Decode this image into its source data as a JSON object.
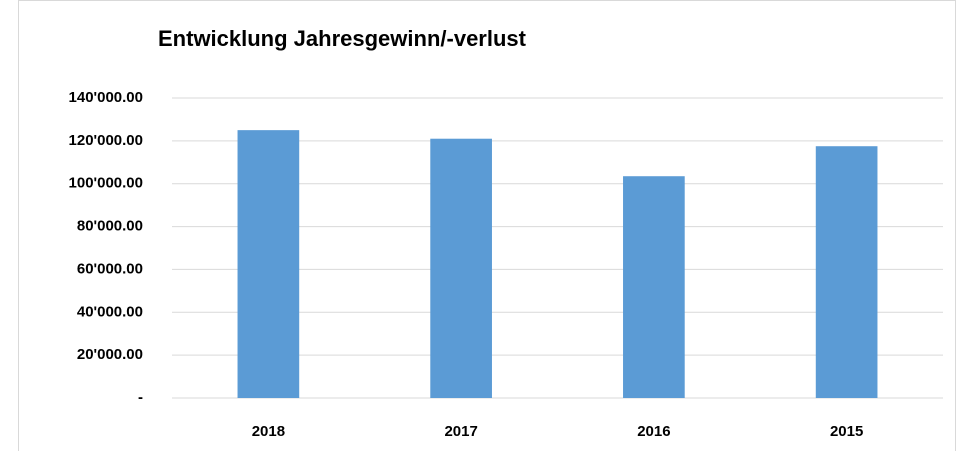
{
  "chart_data": {
    "type": "bar",
    "title": "Entwicklung Jahresgewinn/-verlust",
    "categories": [
      "2018",
      "2017",
      "2016",
      "2015"
    ],
    "values": [
      125000,
      121000,
      103500,
      117500
    ],
    "color": "#5b9bd5",
    "ylim": [
      0,
      140000
    ],
    "yticks": [
      {
        "value": 0,
        "label": "-"
      },
      {
        "value": 20000,
        "label": "20'000.00"
      },
      {
        "value": 40000,
        "label": "40'000.00"
      },
      {
        "value": 60000,
        "label": "60'000.00"
      },
      {
        "value": 80000,
        "label": "80'000.00"
      },
      {
        "value": 100000,
        "label": "100'000.00"
      },
      {
        "value": 120000,
        "label": "120'000.00"
      },
      {
        "value": 140000,
        "label": "140'000.00"
      }
    ],
    "grid": true
  }
}
